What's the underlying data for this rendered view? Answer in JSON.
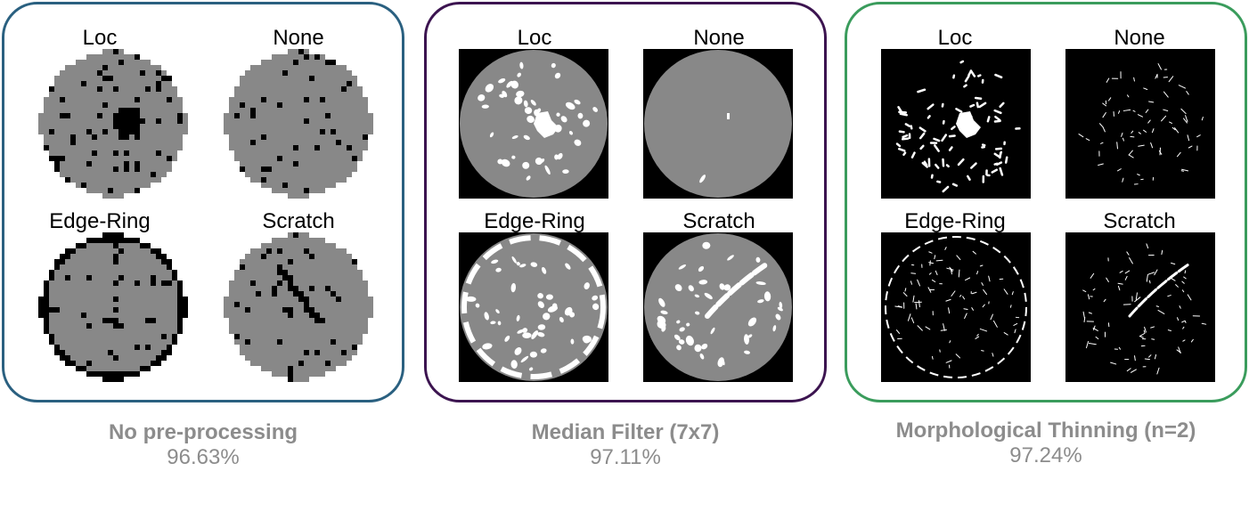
{
  "panels": [
    {
      "id": "no-preprocessing",
      "style": "raw",
      "border_color": "#2a6080",
      "labels": [
        "Loc",
        "None",
        "Edge-Ring",
        "Scratch"
      ],
      "caption_title": "No pre-processing",
      "caption_value": "96.63%"
    },
    {
      "id": "median-filter",
      "style": "median",
      "border_color": "#3c1450",
      "labels": [
        "Loc",
        "None",
        "Edge-Ring",
        "Scratch"
      ],
      "caption_title": "Median Filter (7x7)",
      "caption_value": "97.11%"
    },
    {
      "id": "morphological-thinning",
      "style": "thin",
      "border_color": "#3a9c5c",
      "labels": [
        "Loc",
        "None",
        "Edge-Ring",
        "Scratch"
      ],
      "caption_title": "Morphological Thinning (n=2)",
      "caption_value": "97.24%"
    }
  ],
  "colors": {
    "wafer": "#888888",
    "defect_raw": "#000000",
    "defect_processed": "#ffffff",
    "background_processed": "#000000"
  }
}
